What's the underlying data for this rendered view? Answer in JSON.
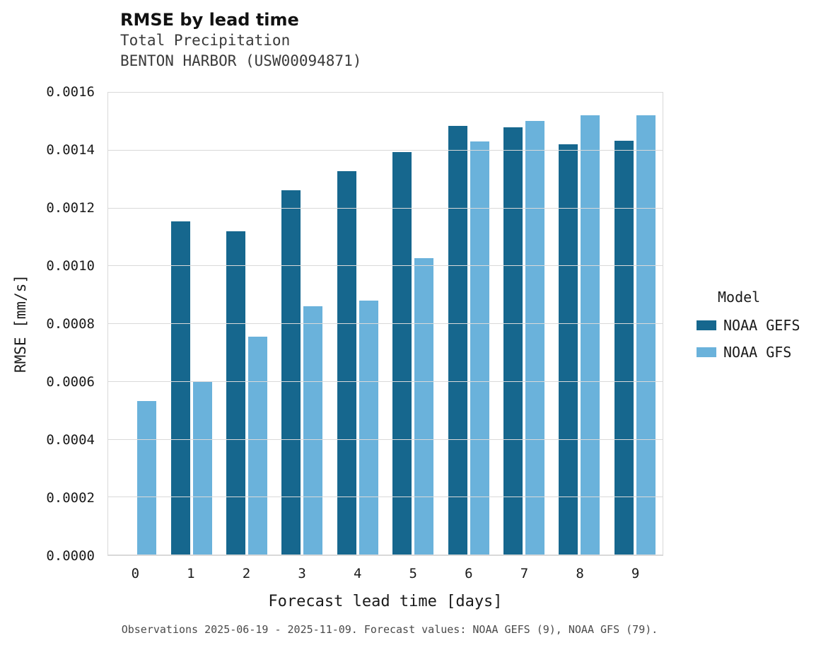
{
  "header": {
    "title": "RMSE by lead time",
    "subtitle_variable": "Total Precipitation",
    "subtitle_station": "BENTON HARBOR (USW00094871)"
  },
  "legend": {
    "title": "Model"
  },
  "caption": "Observations 2025-06-19 - 2025-11-09. Forecast values: NOAA GEFS (9), NOAA GFS (79).",
  "chart_data": {
    "type": "bar",
    "title": "RMSE by lead time",
    "subtitle": "Total Precipitation — BENTON HARBOR (USW00094871)",
    "xlabel": "Forecast lead time [days]",
    "ylabel": "RMSE [mm/s]",
    "categories": [
      "0",
      "1",
      "2",
      "3",
      "4",
      "5",
      "6",
      "7",
      "8",
      "9"
    ],
    "series": [
      {
        "name": "NOAA GEFS",
        "color": "#16678e",
        "values": [
          null,
          0.001154,
          0.00112,
          0.001263,
          0.001329,
          0.001395,
          0.001485,
          0.001481,
          0.001422,
          0.001434
        ]
      },
      {
        "name": "NOAA GFS",
        "color": "#6ab2db",
        "values": [
          0.000534,
          0.000602,
          0.000756,
          0.000861,
          0.00088,
          0.001027,
          0.001432,
          0.001502,
          0.001522,
          0.001522
        ]
      }
    ],
    "ylim": [
      0,
      0.0016
    ],
    "ytick_labels": [
      "0.0000",
      "0.0002",
      "0.0004",
      "0.0006",
      "0.0008",
      "0.0010",
      "0.0012",
      "0.0014",
      "0.0016"
    ],
    "grid": true,
    "legend_position": "right"
  }
}
